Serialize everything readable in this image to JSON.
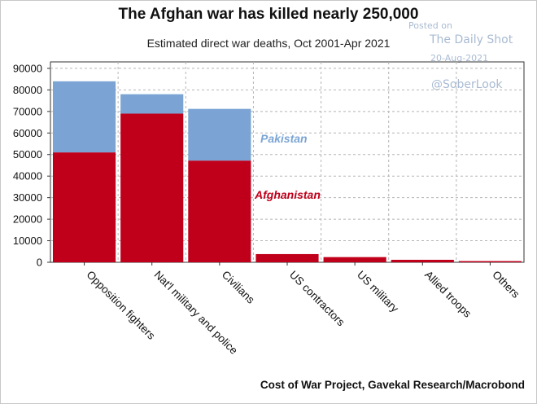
{
  "chart_data": {
    "type": "bar",
    "stacked": true,
    "title": "The Afghan war has killed nearly 250,000",
    "subtitle": "Estimated direct war deaths, Oct 2001-Apr 2021",
    "categories": [
      "Opposition fighters",
      "Nat'l military and police",
      "Civilians",
      "US contractors",
      "US military",
      "Allied troops",
      "Others"
    ],
    "series": [
      {
        "name": "Afghanistan",
        "color": "#c0001a",
        "values": [
          51000,
          69000,
          47200,
          3800,
          2400,
          1150,
          550
        ]
      },
      {
        "name": "Pakistan",
        "color": "#7ba4d4",
        "values": [
          33000,
          9000,
          24000,
          0,
          0,
          0,
          0
        ]
      }
    ],
    "yticks": [
      0,
      10000,
      20000,
      30000,
      40000,
      50000,
      60000,
      70000,
      80000,
      90000
    ],
    "ylim": [
      0,
      93000
    ],
    "grid": true,
    "legend": "inline labels"
  },
  "source": "Cost of War Project, Gavekal Research/Macrobond",
  "watermark": {
    "posted": "Posted on",
    "name": "The Daily Shot",
    "date": "20-Aug-2021",
    "handle": "@SoberLook"
  }
}
